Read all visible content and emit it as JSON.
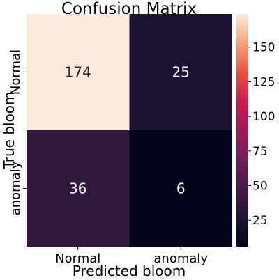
{
  "chart_data": {
    "type": "heatmap",
    "title": "Confusion Matrix",
    "xlabel": "Predicted bloom",
    "ylabel": "True bloom",
    "x_categories": [
      "Normal",
      "anomaly"
    ],
    "y_categories": [
      "Normal",
      "anomaly"
    ],
    "values": [
      [
        174,
        25
      ],
      [
        36,
        6
      ]
    ],
    "annotations": [
      [
        "174",
        "25"
      ],
      [
        "36",
        "6"
      ]
    ],
    "colorbar": {
      "range": [
        6,
        174
      ],
      "ticks": [
        25,
        50,
        75,
        100,
        125,
        150
      ],
      "tick_labels": [
        "25",
        "50",
        "75",
        "100",
        "125",
        "150"
      ]
    },
    "colormap": "rocket",
    "grid": false,
    "legend": "colorbar right"
  }
}
